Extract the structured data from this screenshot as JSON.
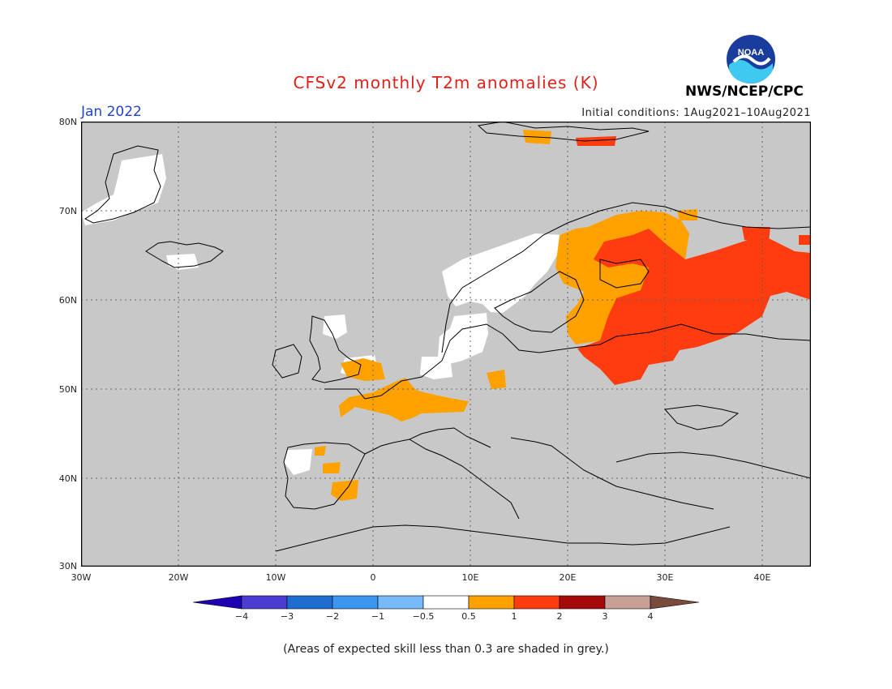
{
  "header": {
    "title": "CFSv2 monthly T2m anomalies (K)",
    "month": "Jan 2022",
    "initial_conditions": "Initial conditions: 1Aug2021–10Aug2021",
    "agency": "NWS/NCEP/CPC",
    "logo_text": "NOAA",
    "logo_icon": "noaa-logo-icon"
  },
  "map": {
    "background_color": "#c8c8c8",
    "grid": true,
    "lat_labels": [
      "80N",
      "70N",
      "60N",
      "50N",
      "40N",
      "30N"
    ],
    "lon_labels": [
      "30W",
      "20W",
      "10W",
      "0",
      "10E",
      "20E",
      "30E",
      "40E"
    ],
    "anomaly_regions": [
      {
        "area": "Ireland / Great Britain",
        "category": "0.5 to 1",
        "color": "#ffa200"
      },
      {
        "area": "France / Benelux",
        "category": "0.5 to 1",
        "color": "#ffa200"
      },
      {
        "area": "Iberia (scattered)",
        "category": "0.5 to 1",
        "color": "#ffa200"
      },
      {
        "area": "Scandinavia / Germany",
        "category": "-0.5 to 0.5",
        "color": "#ffffff"
      },
      {
        "area": "Finland / Baltics",
        "category": "0.5 to 1",
        "color": "#ffa200"
      },
      {
        "area": "Western Russia / Belarus",
        "category": "1 to 2",
        "color": "#ff3c10"
      }
    ]
  },
  "colorbar": {
    "labels": [
      "−4",
      "−3",
      "−2",
      "−1",
      "−0.5",
      "0.5",
      "1",
      "2",
      "3",
      "4"
    ],
    "colors": [
      "#1e00b4",
      "#4b3cd2",
      "#1e6ed2",
      "#3c96f0",
      "#78b9fa",
      "#ffffff",
      "#ffa200",
      "#ff3c10",
      "#a50a0a",
      "#c8a096",
      "#784b3c"
    ]
  },
  "footnote": "(Areas of expected skill less than 0.3 are shaded in grey.)"
}
